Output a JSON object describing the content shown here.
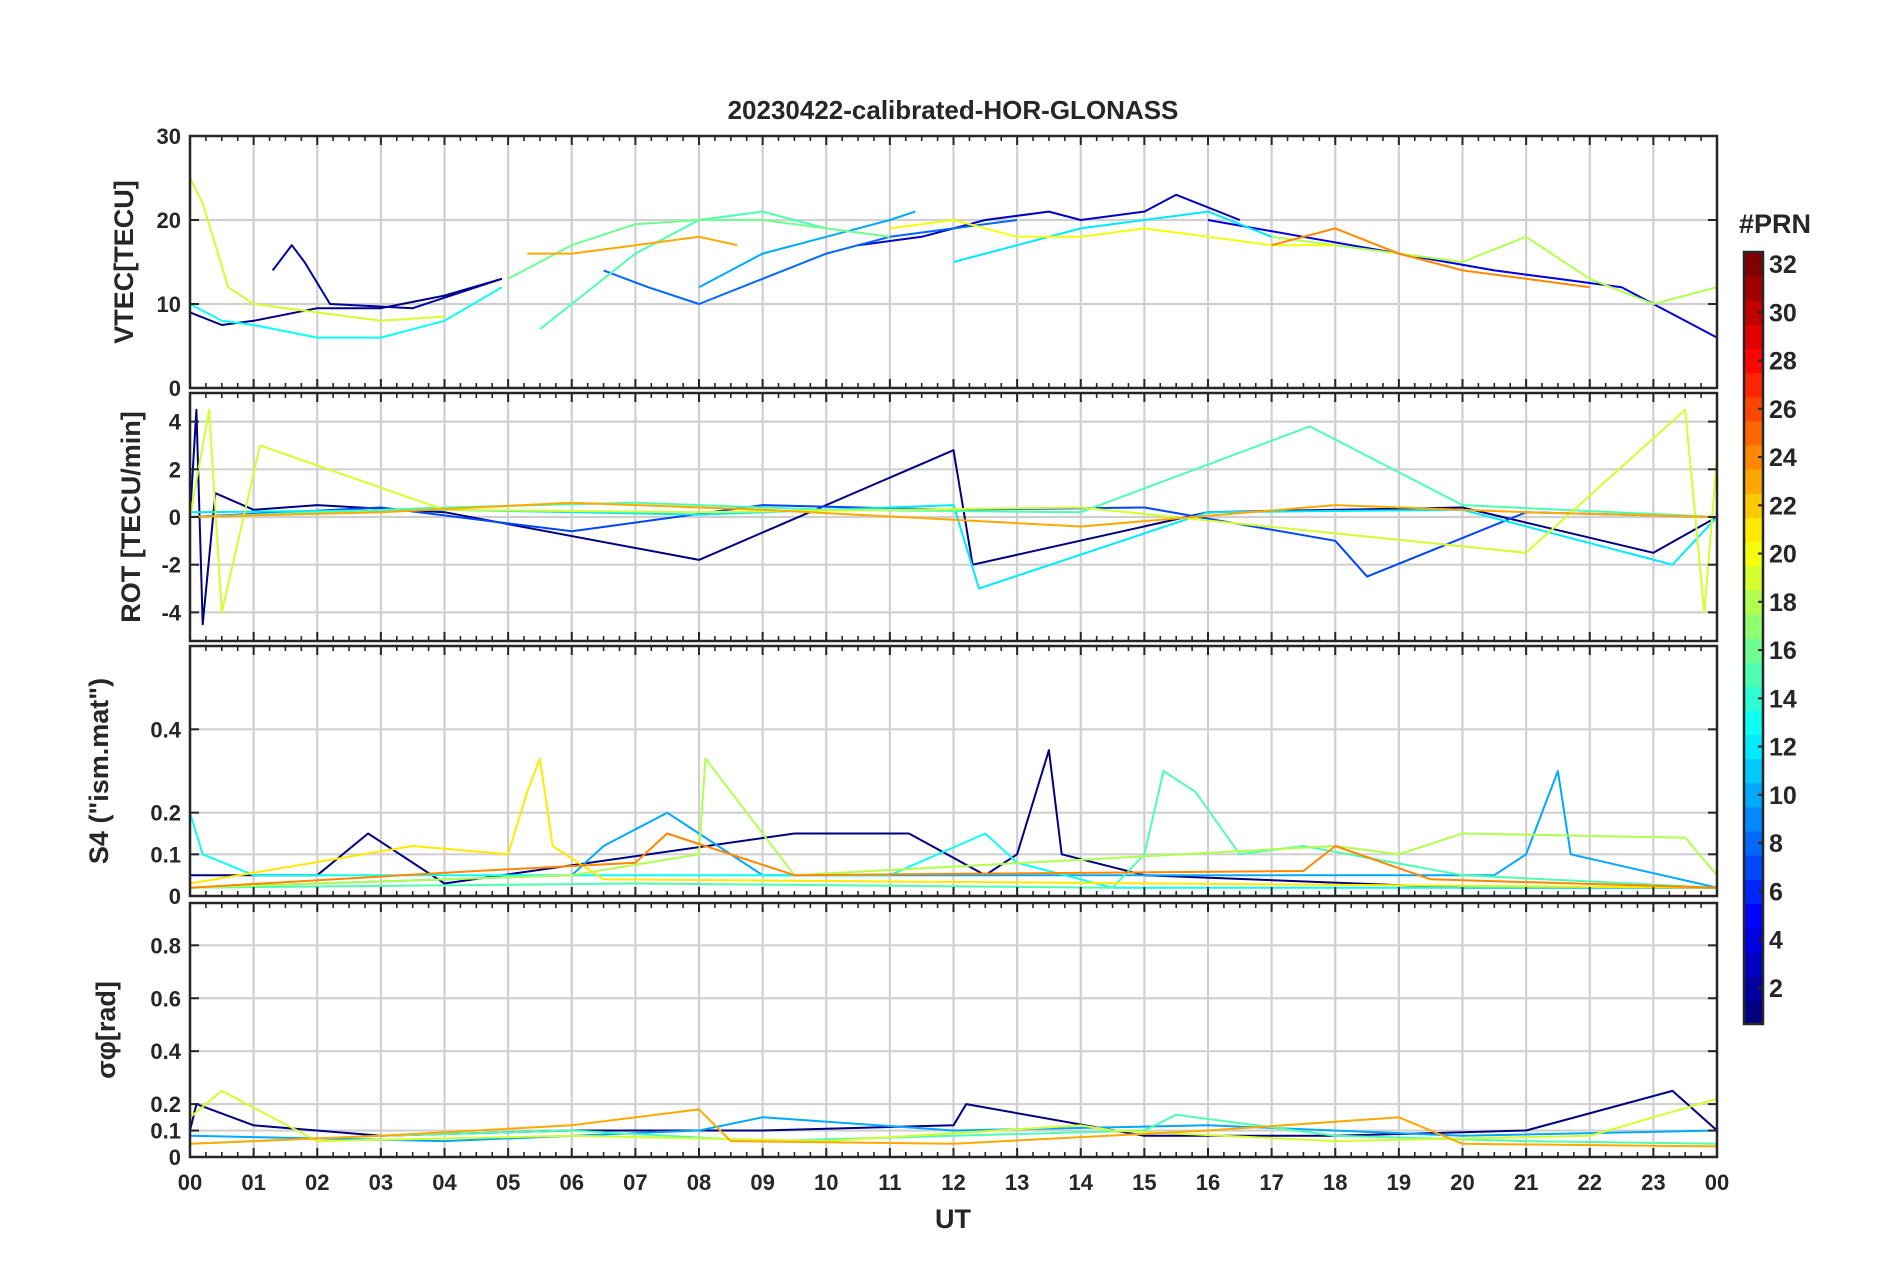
{
  "chart_data": {
    "type": "line",
    "title": "20230422-calibrated-HOR-GLONASS",
    "xlabel": "UT",
    "xlim": [
      0,
      24
    ],
    "xticks": [
      0,
      1,
      2,
      3,
      4,
      5,
      6,
      7,
      8,
      9,
      10,
      11,
      12,
      13,
      14,
      15,
      16,
      17,
      18,
      19,
      20,
      21,
      22,
      23,
      24
    ],
    "xticklabels": [
      "00",
      "01",
      "02",
      "03",
      "04",
      "05",
      "06",
      "07",
      "08",
      "09",
      "10",
      "11",
      "12",
      "13",
      "14",
      "15",
      "16",
      "17",
      "18",
      "19",
      "20",
      "21",
      "22",
      "23",
      "00"
    ],
    "colorbar": {
      "label": "#PRN",
      "range": [
        1,
        32
      ],
      "ticks": [
        2,
        4,
        6,
        8,
        10,
        12,
        14,
        16,
        18,
        20,
        22,
        24,
        26,
        28,
        30,
        32
      ],
      "ticklabels": [
        "2",
        "4",
        "6",
        "8",
        "10",
        "12",
        "14",
        "16",
        "18",
        "20",
        "22",
        "24",
        "26",
        "28",
        "30",
        "32"
      ],
      "colormap": "jet"
    },
    "panels": [
      {
        "id": "vtec",
        "ylabel": "VTEC[TECU]",
        "ylim": [
          0,
          30
        ],
        "yticks": [
          0,
          10,
          20,
          30
        ],
        "yticklabels": [
          "0",
          "10",
          "20",
          "30"
        ],
        "series": [
          {
            "prn": 1,
            "x": [
              0.0,
              0.5,
              1.0,
              2.0,
              3.0,
              4.0,
              4.9
            ],
            "y": [
              9,
              7.5,
              8,
              9.5,
              9.5,
              11,
              13
            ]
          },
          {
            "prn": 2,
            "x": [
              1.3,
              1.6,
              1.8,
              2.2,
              3.5,
              4.5,
              4.9
            ],
            "y": [
              14,
              17,
              15,
              10,
              9.5,
              12,
              13
            ]
          },
          {
            "prn": 3,
            "x": [
              10.5,
              11.5,
              12.5,
              13.5,
              14.0,
              15.0,
              15.5,
              16.5
            ],
            "y": [
              17,
              18,
              20,
              21,
              20,
              21,
              23,
              20
            ]
          },
          {
            "prn": 4,
            "x": [
              16.0,
              17.5,
              19.0,
              20.5,
              21.5,
              22.5,
              23.5,
              24.0
            ],
            "y": [
              20,
              18,
              16,
              14,
              13,
              12,
              8,
              6
            ]
          },
          {
            "prn": 8,
            "x": [
              6.5,
              7.2,
              8.0,
              9.0,
              10.0,
              11.0,
              12.0,
              13.0
            ],
            "y": [
              14,
              12,
              10,
              13,
              16,
              18,
              19,
              20
            ]
          },
          {
            "prn": 10,
            "x": [
              8.0,
              9.0,
              10.0,
              11.0,
              11.4
            ],
            "y": [
              12,
              16,
              18,
              20,
              21
            ]
          },
          {
            "prn": 12,
            "x": [
              12.0,
              13.0,
              14.0,
              15.0,
              16.0,
              17.0
            ],
            "y": [
              15,
              17,
              19,
              20,
              21,
              18
            ]
          },
          {
            "prn": 13,
            "x": [
              0.0,
              0.5,
              1.0,
              2.0,
              3.0,
              4.0,
              4.9
            ],
            "y": [
              10,
              8,
              7.5,
              6,
              6,
              8,
              12
            ]
          },
          {
            "prn": 15,
            "x": [
              5.5,
              6.0,
              7.0,
              8.0,
              9.0,
              10.0
            ],
            "y": [
              7,
              10,
              16,
              20,
              21,
              19
            ]
          },
          {
            "prn": 16,
            "x": [
              5.0,
              6.0,
              7.0,
              8.0,
              9.0,
              10.0,
              11.0
            ],
            "y": [
              13,
              17,
              19.5,
              20,
              20,
              19,
              18
            ]
          },
          {
            "prn": 18,
            "x": [
              17.0,
              18.0,
              19.0,
              20.0,
              21.0,
              22.0,
              23.0,
              24.0
            ],
            "y": [
              18,
              17,
              16,
              15,
              18,
              13,
              10,
              12
            ]
          },
          {
            "prn": 19,
            "x": [
              0.0,
              0.2,
              0.6,
              1.0,
              2.0,
              3.0,
              4.0
            ],
            "y": [
              25,
              22,
              12,
              10,
              9,
              8,
              8.5
            ]
          },
          {
            "prn": 20,
            "x": [
              11.0,
              12.0,
              13.0,
              14.0,
              15.0,
              16.0,
              17.0,
              18.0
            ],
            "y": [
              19,
              20,
              18,
              18,
              19,
              18,
              17,
              17
            ]
          },
          {
            "prn": 23,
            "x": [
              5.3,
              6.0,
              7.0,
              8.0,
              8.6
            ],
            "y": [
              16,
              16,
              17,
              18,
              17
            ]
          },
          {
            "prn": 24,
            "x": [
              17.0,
              18.0,
              19.0,
              20.0,
              21.0,
              22.0
            ],
            "y": [
              17,
              19,
              16,
              14,
              13,
              12
            ]
          }
        ]
      },
      {
        "id": "rot",
        "ylabel": "ROT [TECU/min]",
        "ylim": [
          -5.2,
          5.2
        ],
        "yticks": [
          -4,
          -2,
          0,
          2,
          4
        ],
        "yticklabels": [
          "-4",
          "-2",
          "0",
          "2",
          "4"
        ],
        "series": [
          {
            "prn": 1,
            "x": [
              0.0,
              0.1,
              0.2,
              0.4,
              1.0,
              2.0,
              4.0,
              8.0,
              12.0,
              12.3,
              16.0,
              20.0,
              23.0,
              24.0
            ],
            "y": [
              0,
              4.5,
              -4.5,
              1,
              0.3,
              0.5,
              0.2,
              -1.8,
              2.8,
              -2.0,
              0.2,
              0.4,
              -1.5,
              0
            ]
          },
          {
            "prn": 7,
            "x": [
              0.0,
              3.0,
              6.0,
              9.0,
              12.0,
              15.0,
              18.0,
              18.5,
              21.0,
              24.0
            ],
            "y": [
              0,
              0.4,
              -0.6,
              0.5,
              0.3,
              0.4,
              -1.0,
              -2.5,
              0.2,
              0
            ]
          },
          {
            "prn": 12,
            "x": [
              0.0,
              4.0,
              8.0,
              12.0,
              12.4,
              16.0,
              20.0,
              23.3,
              24.0
            ],
            "y": [
              0.2,
              0.3,
              0.1,
              0.5,
              -3.0,
              0.2,
              0.3,
              -2.0,
              0
            ]
          },
          {
            "prn": 15,
            "x": [
              0.0,
              4.0,
              7.0,
              10.0,
              14.0,
              17.6,
              20.0,
              24.0
            ],
            "y": [
              0,
              0.4,
              0.6,
              0.3,
              0.2,
              3.8,
              0.5,
              0
            ]
          },
          {
            "prn": 19,
            "x": [
              0.0,
              0.3,
              0.5,
              1.1,
              4.0,
              8.0,
              14.0,
              21.0,
              23.5,
              23.8,
              24.0
            ],
            "y": [
              0,
              4.5,
              -4.0,
              3.0,
              0.3,
              0.2,
              0.4,
              -1.5,
              4.5,
              -4.0,
              2.5
            ]
          },
          {
            "prn": 23,
            "x": [
              0.0,
              3.0,
              6.0,
              9.0,
              14.0,
              18.0,
              21.0,
              24.0
            ],
            "y": [
              0,
              0.2,
              0.6,
              0.3,
              -0.4,
              0.5,
              0.2,
              0
            ]
          }
        ]
      },
      {
        "id": "s4",
        "ylabel": "S4 (\"ism.mat\")",
        "ylim": [
          0,
          0.6
        ],
        "yticks": [
          0,
          0.1,
          0.2,
          0.4
        ],
        "yticklabels": [
          "0",
          "0.1",
          "0.2",
          "0.4"
        ],
        "series": [
          {
            "prn": 1,
            "x": [
              0.0,
              2.0,
              2.8,
              4.0,
              9.5,
              11.3,
              12.5,
              13.0,
              13.5,
              13.7,
              15.0,
              20.0,
              24.0
            ],
            "y": [
              0.05,
              0.05,
              0.15,
              0.03,
              0.15,
              0.15,
              0.05,
              0.1,
              0.35,
              0.1,
              0.05,
              0.02,
              0.02
            ]
          },
          {
            "prn": 10,
            "x": [
              0.0,
              6.0,
              6.5,
              7.5,
              8.0,
              9.0,
              20.5,
              21.0,
              21.5,
              21.7,
              24.0
            ],
            "y": [
              0.02,
              0.05,
              0.12,
              0.2,
              0.15,
              0.05,
              0.05,
              0.1,
              0.3,
              0.1,
              0.02
            ]
          },
          {
            "prn": 13,
            "x": [
              0.0,
              0.2,
              1.0,
              11.0,
              12.5,
              13.0,
              14.5,
              24.0
            ],
            "y": [
              0.2,
              0.1,
              0.05,
              0.05,
              0.15,
              0.08,
              0.02,
              0.02
            ]
          },
          {
            "prn": 15,
            "x": [
              0.0,
              7.0,
              14.5,
              15.0,
              15.3,
              15.8,
              16.5,
              17.5,
              20.0,
              24.0
            ],
            "y": [
              0.02,
              0.03,
              0.02,
              0.1,
              0.3,
              0.25,
              0.1,
              0.12,
              0.05,
              0.02
            ]
          },
          {
            "prn": 18,
            "x": [
              0.0,
              6.0,
              8.0,
              8.1,
              9.5,
              18.0,
              19.0,
              20.0,
              23.5,
              24.0
            ],
            "y": [
              0.02,
              0.05,
              0.1,
              0.33,
              0.05,
              0.12,
              0.1,
              0.15,
              0.14,
              0.05
            ]
          },
          {
            "prn": 21,
            "x": [
              0.0,
              3.5,
              5.0,
              5.3,
              5.5,
              5.7,
              6.5,
              24.0
            ],
            "y": [
              0.03,
              0.12,
              0.1,
              0.25,
              0.33,
              0.12,
              0.04,
              0.02
            ]
          },
          {
            "prn": 24,
            "x": [
              0.0,
              4.5,
              7.0,
              7.5,
              9.5,
              17.5,
              18.0,
              19.5,
              24.0
            ],
            "y": [
              0.02,
              0.06,
              0.08,
              0.15,
              0.05,
              0.06,
              0.12,
              0.04,
              0.02
            ]
          }
        ]
      },
      {
        "id": "sigma_phi",
        "ylabel": "σφ[rad]",
        "ylim": [
          0,
          0.96
        ],
        "yticks": [
          0,
          0.1,
          0.2,
          0.4,
          0.6,
          0.8
        ],
        "yticklabels": [
          "0",
          "0.1",
          "0.2",
          "0.4",
          "0.6",
          "0.8"
        ],
        "series": [
          {
            "prn": 1,
            "x": [
              0.0,
              0.1,
              1.0,
              3.0,
              6.0,
              9.0,
              12.0,
              12.2,
              15.0,
              18.0,
              21.0,
              23.3,
              24.0
            ],
            "y": [
              0.1,
              0.2,
              0.12,
              0.08,
              0.1,
              0.1,
              0.12,
              0.2,
              0.08,
              0.08,
              0.1,
              0.25,
              0.1
            ]
          },
          {
            "prn": 10,
            "x": [
              0.0,
              4.0,
              8.0,
              9.0,
              12.0,
              16.0,
              20.0,
              24.0
            ],
            "y": [
              0.08,
              0.06,
              0.1,
              0.15,
              0.1,
              0.12,
              0.08,
              0.1
            ]
          },
          {
            "prn": 15,
            "x": [
              0.0,
              3.0,
              6.0,
              9.0,
              12.0,
              15.0,
              15.5,
              18.0,
              21.0,
              24.0
            ],
            "y": [
              0.05,
              0.08,
              0.1,
              0.06,
              0.08,
              0.1,
              0.16,
              0.08,
              0.06,
              0.05
            ]
          },
          {
            "prn": 19,
            "x": [
              0.0,
              0.5,
              2.0,
              6.0,
              10.0,
              14.0,
              14.5,
              18.0,
              22.0,
              24.0
            ],
            "y": [
              0.15,
              0.25,
              0.06,
              0.08,
              0.06,
              0.12,
              0.1,
              0.06,
              0.08,
              0.22
            ]
          },
          {
            "prn": 23,
            "x": [
              0.0,
              3.0,
              6.0,
              8.0,
              8.5,
              12.0,
              16.0,
              19.0,
              20.0,
              24.0
            ],
            "y": [
              0.05,
              0.08,
              0.12,
              0.18,
              0.06,
              0.05,
              0.1,
              0.15,
              0.05,
              0.04
            ]
          }
        ]
      }
    ]
  }
}
